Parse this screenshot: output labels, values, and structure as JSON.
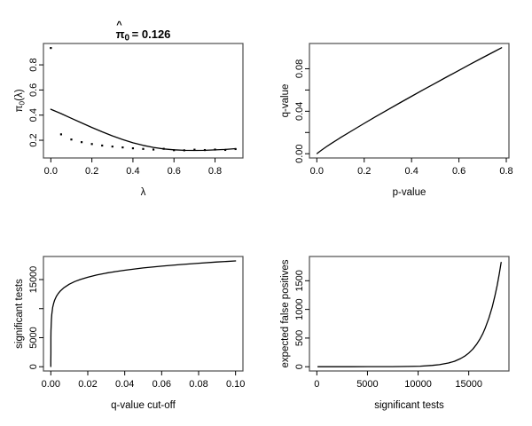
{
  "figure": {
    "description": "qvalue diagnostic plots, 2x2 panel",
    "style": {
      "fg": "#000000",
      "bg": "#ffffff",
      "box": "#4d4d4d"
    }
  },
  "chart_data": [
    {
      "name": "pi0-vs-lambda",
      "type": "scatter+line",
      "title_parts": {
        "hat": "^",
        "base": "π",
        "sub": "0",
        "rest": "= 0.126"
      },
      "xlabel": "λ",
      "ylabel_parts": {
        "pre": "π",
        "sub": "0",
        "post": "(λ)"
      },
      "xusr": [
        -0.036,
        0.936
      ],
      "yusr": [
        0.059,
        0.97
      ],
      "xticks": [
        0,
        0.2,
        0.4,
        0.6,
        0.8
      ],
      "xtick_labels": [
        "0.0",
        "0.2",
        "0.4",
        "0.6",
        "0.8"
      ],
      "yticks": [
        0.2,
        0.4,
        0.6,
        0.8
      ],
      "ytick_labels": [
        "0.2",
        "0.4",
        "0.6",
        "0.8"
      ],
      "points": [
        [
          0.0,
          0.934
        ],
        [
          0.05,
          0.247
        ],
        [
          0.1,
          0.206
        ],
        [
          0.15,
          0.185
        ],
        [
          0.2,
          0.17
        ],
        [
          0.25,
          0.158
        ],
        [
          0.3,
          0.15
        ],
        [
          0.35,
          0.143
        ],
        [
          0.4,
          0.136
        ],
        [
          0.45,
          0.131
        ],
        [
          0.5,
          0.126
        ],
        [
          0.55,
          0.132
        ],
        [
          0.6,
          0.121
        ],
        [
          0.65,
          0.12
        ],
        [
          0.7,
          0.125
        ],
        [
          0.75,
          0.122
        ],
        [
          0.8,
          0.126
        ],
        [
          0.85,
          0.123
        ],
        [
          0.9,
          0.13
        ]
      ],
      "curve": [
        [
          0.0,
          0.447
        ],
        [
          0.05,
          0.412
        ],
        [
          0.1,
          0.375
        ],
        [
          0.15,
          0.338
        ],
        [
          0.2,
          0.302
        ],
        [
          0.25,
          0.267
        ],
        [
          0.3,
          0.235
        ],
        [
          0.35,
          0.206
        ],
        [
          0.4,
          0.18
        ],
        [
          0.45,
          0.159
        ],
        [
          0.5,
          0.143
        ],
        [
          0.55,
          0.131
        ],
        [
          0.6,
          0.124
        ],
        [
          0.65,
          0.12
        ],
        [
          0.7,
          0.119
        ],
        [
          0.75,
          0.12
        ],
        [
          0.8,
          0.123
        ],
        [
          0.85,
          0.127
        ],
        [
          0.9,
          0.133
        ]
      ]
    },
    {
      "name": "qvalue-vs-pvalue",
      "type": "line",
      "xlabel": "p-value",
      "ylabel": "q-value",
      "xusr": [
        -0.0312,
        0.8112
      ],
      "yusr": [
        -0.004,
        0.1038
      ],
      "xticks": [
        0,
        0.2,
        0.4,
        0.6,
        0.8
      ],
      "xtick_labels": [
        "0.0",
        "0.2",
        "0.4",
        "0.6",
        "0.8"
      ],
      "yticks": [
        0,
        0.02,
        0.04,
        0.06,
        0.08
      ],
      "ytick_labels": [
        "0.00",
        "",
        "0.04",
        "",
        "0.08"
      ],
      "curve": [
        [
          0.001,
          0.0002
        ],
        [
          0.01,
          0.0018
        ],
        [
          0.02,
          0.0034
        ],
        [
          0.04,
          0.0065
        ],
        [
          0.06,
          0.0095
        ],
        [
          0.1,
          0.0151
        ],
        [
          0.15,
          0.0219
        ],
        [
          0.2,
          0.0286
        ],
        [
          0.25,
          0.0351
        ],
        [
          0.3,
          0.0415
        ],
        [
          0.35,
          0.0478
        ],
        [
          0.4,
          0.0541
        ],
        [
          0.45,
          0.0603
        ],
        [
          0.5,
          0.0664
        ],
        [
          0.55,
          0.0725
        ],
        [
          0.6,
          0.0785
        ],
        [
          0.65,
          0.0845
        ],
        [
          0.7,
          0.0904
        ],
        [
          0.75,
          0.0963
        ],
        [
          0.78,
          0.0998
        ]
      ]
    },
    {
      "name": "significant-tests-vs-qvalue-cutoff",
      "type": "line",
      "xlabel": "q-value cut-off",
      "ylabel": "significant tests",
      "xusr": [
        -0.004,
        0.104
      ],
      "yusr": [
        -730,
        18970
      ],
      "xticks": [
        0,
        0.02,
        0.04,
        0.06,
        0.08,
        0.1
      ],
      "xtick_labels": [
        "0.00",
        "0.02",
        "0.04",
        "0.06",
        "0.08",
        "0.10"
      ],
      "yticks": [
        0,
        5000,
        10000,
        15000
      ],
      "ytick_labels": [
        "0",
        "5000",
        "",
        "15000"
      ],
      "curve": [
        [
          3e-06,
          30
        ],
        [
          3.5e-06,
          380
        ],
        [
          5e-06,
          999
        ],
        [
          1e-05,
          2202
        ],
        [
          2e-05,
          3406
        ],
        [
          3e-05,
          4110
        ],
        [
          5e-05,
          4997
        ],
        [
          0.0001,
          6201
        ],
        [
          0.0002,
          7405
        ],
        [
          0.0003,
          8110
        ],
        [
          0.0005,
          8997
        ],
        [
          0.001,
          10201
        ],
        [
          0.0015,
          10905
        ],
        [
          0.002,
          11405
        ],
        [
          0.003,
          12108
        ],
        [
          0.004,
          12609
        ],
        [
          0.005,
          12996
        ],
        [
          0.007,
          13581
        ],
        [
          0.01,
          14200
        ],
        [
          0.013,
          14656
        ],
        [
          0.016,
          15016
        ],
        [
          0.02,
          15404
        ],
        [
          0.025,
          15792
        ],
        [
          0.03,
          16108
        ],
        [
          0.035,
          16376
        ],
        [
          0.04,
          16608
        ],
        [
          0.05,
          16995
        ],
        [
          0.06,
          17312
        ],
        [
          0.07,
          17579
        ],
        [
          0.08,
          17811
        ],
        [
          0.09,
          18016
        ],
        [
          0.1,
          18200
        ]
      ]
    },
    {
      "name": "expected-false-positives-vs-significant-tests",
      "type": "line",
      "xlabel": "significant tests",
      "ylabel": "expected false positives",
      "xusr": [
        -730,
        18970
      ],
      "yusr": [
        -74,
        1923
      ],
      "xticks": [
        0,
        5000,
        10000,
        15000
      ],
      "xtick_labels": [
        "0",
        "5000",
        "10000",
        "15000"
      ],
      "yticks": [
        0,
        500,
        1000,
        1500
      ],
      "ytick_labels": [
        "0",
        "500",
        "1000",
        "1500"
      ],
      "curve": [
        [
          112,
          0
        ],
        [
          999,
          0.1
        ],
        [
          2202,
          0.5
        ],
        [
          3406,
          1
        ],
        [
          4997,
          1.5
        ],
        [
          6201,
          2
        ],
        [
          7405,
          2.5
        ],
        [
          8997,
          4.5
        ],
        [
          10201,
          10.2
        ],
        [
          11405,
          22.8
        ],
        [
          12108,
          36.3
        ],
        [
          12996,
          65.0
        ],
        [
          13581,
          95.1
        ],
        [
          14200,
          142.0
        ],
        [
          14656,
          190.5
        ],
        [
          15016,
          240.3
        ],
        [
          15404,
          308.1
        ],
        [
          15792,
          394.8
        ],
        [
          16108,
          483.2
        ],
        [
          16376,
          573.2
        ],
        [
          16608,
          664.3
        ],
        [
          16995,
          849.8
        ],
        [
          17312,
          1038.7
        ],
        [
          17579,
          1230.5
        ],
        [
          17811,
          1424.9
        ],
        [
          18016,
          1621.4
        ],
        [
          18200,
          1820.0
        ]
      ]
    }
  ]
}
